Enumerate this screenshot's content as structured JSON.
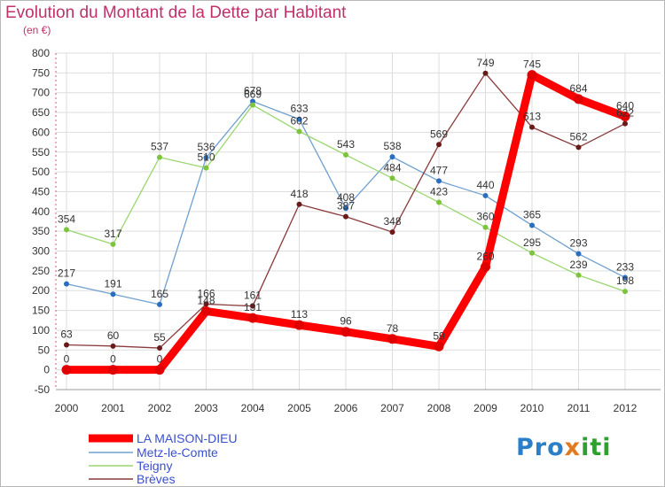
{
  "chart_data": {
    "type": "line",
    "title": "Evolution du Montant de la Dette par Habitant",
    "subtitle": "(en €)",
    "xlabel": "",
    "ylabel": "",
    "categories": [
      "2000",
      "2001",
      "2002",
      "2003",
      "2004",
      "2005",
      "2006",
      "2007",
      "2008",
      "2009",
      "2010",
      "2011",
      "2012"
    ],
    "ylim": [
      -50,
      800
    ],
    "yticks": [
      -50,
      0,
      50,
      100,
      150,
      200,
      250,
      300,
      350,
      400,
      450,
      500,
      550,
      600,
      650,
      700,
      750,
      800
    ],
    "grid": true,
    "legend_position": "bottom-left",
    "series": [
      {
        "name": "LA MAISON-DIEU",
        "color": "#ff0000",
        "point_color": "#e00000",
        "values": [
          0,
          0,
          0,
          148,
          131,
          113,
          96,
          78,
          59,
          260,
          745,
          684,
          640
        ]
      },
      {
        "name": "Metz-le-Comte",
        "color": "#6fa0d0",
        "point_color": "#2a6fbf",
        "values": [
          217,
          191,
          165,
          536,
          678,
          633,
          408,
          538,
          477,
          440,
          365,
          293,
          233
        ]
      },
      {
        "name": "Teigny",
        "color": "#9ad66e",
        "point_color": "#7cc43c",
        "values": [
          354,
          317,
          537,
          510,
          669,
          602,
          543,
          484,
          423,
          360,
          295,
          239,
          198
        ]
      },
      {
        "name": "Brèves",
        "color": "#8a3a3a",
        "point_color": "#6b1a1a",
        "values": [
          63,
          60,
          55,
          166,
          161,
          418,
          387,
          348,
          569,
          749,
          613,
          562,
          622
        ]
      }
    ]
  },
  "brand": {
    "logo_part1": "Pro",
    "logo_part2": "x",
    "logo_part3": "iti"
  }
}
